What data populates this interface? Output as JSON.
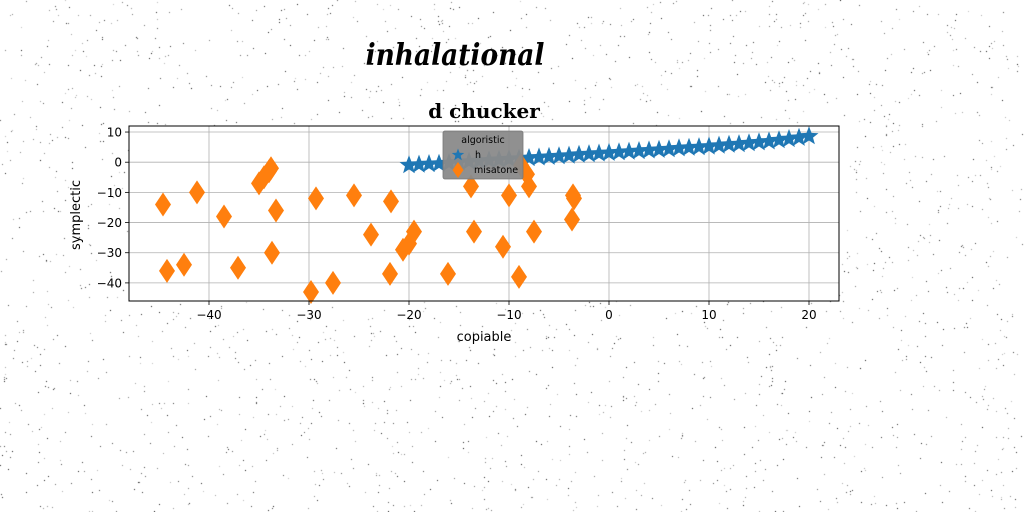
{
  "figure": {
    "suptitle": "inhalational"
  },
  "chart_data": {
    "type": "scatter",
    "title": "d chucker",
    "xlabel": "copiable",
    "ylabel": "symplectic",
    "xlim": [
      -48,
      23
    ],
    "ylim": [
      -46,
      12
    ],
    "xticks": [
      -40,
      -30,
      -20,
      -10,
      0,
      10,
      20
    ],
    "yticks": [
      -40,
      -30,
      -20,
      -10,
      0,
      10
    ],
    "xtick_labels": [
      "−40",
      "−30",
      "−20",
      "−10",
      "0",
      "10",
      "20"
    ],
    "ytick_labels": [
      "−40",
      "−30",
      "−20",
      "−10",
      "0",
      "10"
    ],
    "grid": true,
    "legend": {
      "title": "algoristic",
      "placement": "upper-center"
    },
    "series": [
      {
        "name": "h",
        "marker": "star",
        "color": "#1f77b4",
        "x": [
          -20.0,
          -19.0,
          -18.0,
          -17.0,
          -16.0,
          -15.0,
          -14.0,
          -13.0,
          -12.0,
          -11.0,
          -10.0,
          -9.0,
          -8.0,
          -7.0,
          -6.0,
          -5.0,
          -4.0,
          -3.0,
          -2.0,
          -1.0,
          0.0,
          1.0,
          2.0,
          3.0,
          4.0,
          5.0,
          6.0,
          7.0,
          8.0,
          9.0,
          10.0,
          11.0,
          12.0,
          13.0,
          14.0,
          15.0,
          16.0,
          17.0,
          18.0,
          19.0,
          20.0
        ],
        "y": [
          -1.0,
          -0.8,
          -0.6,
          -0.5,
          -0.3,
          -0.1,
          0.2,
          0.4,
          0.6,
          0.8,
          1.0,
          1.2,
          1.4,
          1.6,
          1.8,
          2.0,
          2.2,
          2.5,
          2.7,
          2.9,
          3.1,
          3.3,
          3.5,
          3.7,
          3.9,
          4.1,
          4.3,
          4.6,
          4.8,
          5.0,
          5.2,
          5.5,
          5.8,
          6.0,
          6.3,
          6.6,
          6.9,
          7.3,
          7.7,
          8.1,
          8.6
        ]
      },
      {
        "name": "misatone",
        "marker": "thin-diamond",
        "color": "#ff7f0e",
        "x": [
          -44.6,
          -44.2,
          -42.5,
          -41.2,
          -38.5,
          -37.1,
          -35.0,
          -34.5,
          -34.0,
          -33.8,
          -33.7,
          -33.3,
          -29.8,
          -29.3,
          -27.6,
          -25.5,
          -23.8,
          -21.9,
          -21.8,
          -20.6,
          -20.0,
          -19.5,
          -16.1,
          -13.8,
          -13.5,
          -10.6,
          -10.0,
          -9.0,
          -8.8,
          -8.2,
          -8.0,
          -7.5,
          -3.7,
          -3.6,
          -3.5
        ],
        "y": [
          -14,
          -36,
          -34,
          -10,
          -18,
          -35,
          -7,
          -5,
          -3,
          -2,
          -30,
          -16,
          -43,
          -12,
          -40,
          -11,
          -24,
          -37,
          -13,
          -29,
          -27,
          -23,
          -37,
          -8,
          -23,
          -28,
          -11,
          -38,
          -1,
          -4,
          -8,
          -23,
          -19,
          -11,
          -12
        ]
      }
    ]
  }
}
